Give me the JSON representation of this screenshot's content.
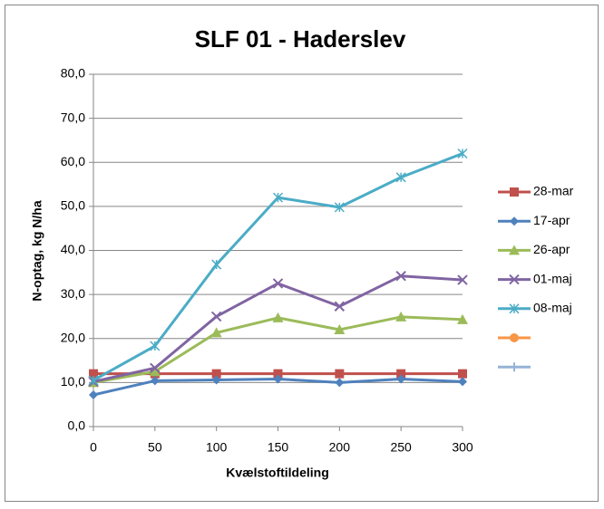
{
  "chart_data": {
    "type": "line",
    "title": "SLF 01 - Haderslev",
    "x_label": "Kvælstoftildeling",
    "y_label": "N-optag, kg N/ha",
    "x": [
      0,
      50,
      100,
      150,
      200,
      250,
      300
    ],
    "xlim": [
      0,
      300
    ],
    "xticks": [
      0,
      50,
      100,
      150,
      200,
      250,
      300
    ],
    "ylim": [
      0,
      80
    ],
    "yticks": [
      {
        "value": 0,
        "label": "0,0"
      },
      {
        "value": 10,
        "label": "10,0"
      },
      {
        "value": 20,
        "label": "20,0"
      },
      {
        "value": 30,
        "label": "30,0"
      },
      {
        "value": 40,
        "label": "40,0"
      },
      {
        "value": 50,
        "label": "50,0"
      },
      {
        "value": 60,
        "label": "60,0"
      },
      {
        "value": 70,
        "label": "70,0"
      },
      {
        "value": 80,
        "label": "80,0"
      }
    ],
    "grid": true,
    "legend": "right",
    "series": [
      {
        "name": "28-mar",
        "color": "#c0504d",
        "marker": "square",
        "values": [
          12.0,
          12.0,
          12.0,
          12.0,
          12.0,
          12.0,
          12.0
        ]
      },
      {
        "name": "17-apr",
        "color": "#4f81bd",
        "marker": "diamond",
        "values": [
          7.2,
          10.4,
          10.6,
          10.8,
          10.0,
          10.8,
          10.2
        ]
      },
      {
        "name": "26-apr",
        "color": "#9bbb59",
        "marker": "triangle",
        "values": [
          10.0,
          12.5,
          21.3,
          24.7,
          22.0,
          24.9,
          24.3
        ]
      },
      {
        "name": "01-maj",
        "color": "#8064a2",
        "marker": "x",
        "values": [
          10.2,
          13.3,
          25.0,
          32.5,
          27.3,
          34.2,
          33.3
        ]
      },
      {
        "name": "08-maj",
        "color": "#4bacc6",
        "marker": "star",
        "values": [
          10.5,
          18.3,
          36.8,
          52.0,
          49.8,
          56.6,
          62.0
        ]
      },
      {
        "name": null,
        "color": "#f79646",
        "marker": "circle",
        "values": [
          null,
          null,
          null,
          null,
          null,
          null,
          null
        ]
      },
      {
        "name": null,
        "color": "#95b3d7",
        "marker": "plus",
        "values": [
          null,
          null,
          null,
          null,
          null,
          null,
          null
        ]
      }
    ]
  }
}
